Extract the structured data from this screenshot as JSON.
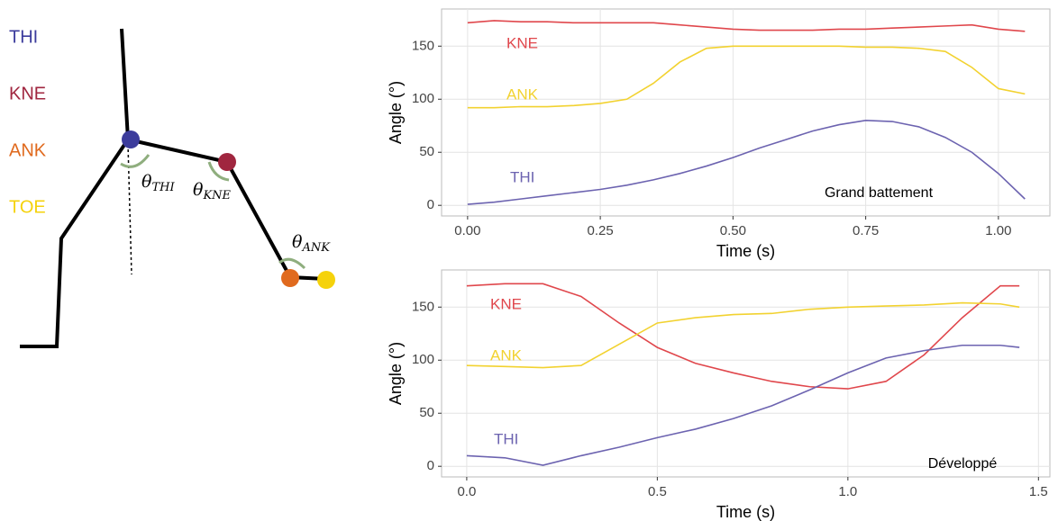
{
  "diagram": {
    "joints": [
      "THI",
      "KNE",
      "ANK",
      "TOE"
    ],
    "angles": [
      {
        "symbol": "θ",
        "sub": "THI"
      },
      {
        "symbol": "θ",
        "sub": "KNE"
      },
      {
        "symbol": "θ",
        "sub": "ANK"
      }
    ]
  },
  "chart_data": [
    {
      "type": "line",
      "caption": "Grand battement",
      "x_label": "Time (s)",
      "y_label": "Angle (°)",
      "x": [
        0,
        0.05,
        0.1,
        0.15,
        0.2,
        0.25,
        0.3,
        0.35,
        0.4,
        0.45,
        0.5,
        0.55,
        0.6,
        0.65,
        0.7,
        0.75,
        0.8,
        0.85,
        0.9,
        0.95,
        1.0,
        1.05
      ],
      "series": [
        {
          "name": "KNE",
          "color": "#e0474c",
          "values": [
            172,
            174,
            173,
            173,
            172,
            172,
            172,
            172,
            170,
            168,
            166,
            165,
            165,
            165,
            166,
            166,
            167,
            168,
            169,
            170,
            166,
            164
          ]
        },
        {
          "name": "ANK",
          "color": "#f2d230",
          "values": [
            92,
            92,
            93,
            93,
            94,
            96,
            100,
            115,
            135,
            148,
            150,
            150,
            150,
            150,
            150,
            149,
            149,
            148,
            145,
            130,
            110,
            105
          ]
        },
        {
          "name": "THI",
          "color": "#6c63b0",
          "values": [
            1,
            3,
            6,
            9,
            12,
            15,
            19,
            24,
            30,
            37,
            45,
            54,
            62,
            70,
            76,
            80,
            79,
            74,
            64,
            50,
            30,
            6
          ]
        }
      ],
      "xlim": [
        -0.049,
        1.097
      ],
      "ylim": [
        -10,
        185
      ],
      "xticks": [
        {
          "value": 0,
          "label": "0.00"
        },
        {
          "value": 0.25,
          "label": "0.25"
        },
        {
          "value": 0.5,
          "label": "0.50"
        },
        {
          "value": 0.75,
          "label": "0.75"
        },
        {
          "value": 1,
          "label": "1.00"
        }
      ],
      "yticks": [
        0,
        50,
        100,
        150
      ],
      "grid": true
    },
    {
      "type": "line",
      "caption": "Développé",
      "x_label": "Time (s)",
      "y_label": "Angle (°)",
      "x": [
        0,
        0.1,
        0.2,
        0.3,
        0.4,
        0.5,
        0.6,
        0.7,
        0.8,
        0.9,
        1.0,
        1.1,
        1.2,
        1.3,
        1.4,
        1.45
      ],
      "series": [
        {
          "name": "KNE",
          "color": "#e0474c",
          "values": [
            170,
            172,
            172,
            160,
            135,
            112,
            97,
            88,
            80,
            75,
            73,
            80,
            105,
            140,
            170,
            170
          ]
        },
        {
          "name": "ANK",
          "color": "#f2d230",
          "values": [
            95,
            94,
            93,
            95,
            115,
            135,
            140,
            143,
            144,
            148,
            150,
            151,
            152,
            154,
            153,
            150
          ]
        },
        {
          "name": "THI",
          "color": "#6c63b0",
          "values": [
            10,
            8,
            1,
            10,
            18,
            27,
            35,
            45,
            57,
            72,
            88,
            102,
            109,
            114,
            114,
            112
          ]
        }
      ],
      "xlim": [
        -0.066,
        1.53
      ],
      "ylim": [
        -10,
        185
      ],
      "xticks": [
        {
          "value": 0,
          "label": "0.0"
        },
        {
          "value": 0.5,
          "label": "0.5"
        },
        {
          "value": 1,
          "label": "1.0"
        },
        {
          "value": 1.5,
          "label": "1.5"
        }
      ],
      "yticks": [
        0,
        50,
        100,
        150
      ],
      "grid": true
    }
  ]
}
